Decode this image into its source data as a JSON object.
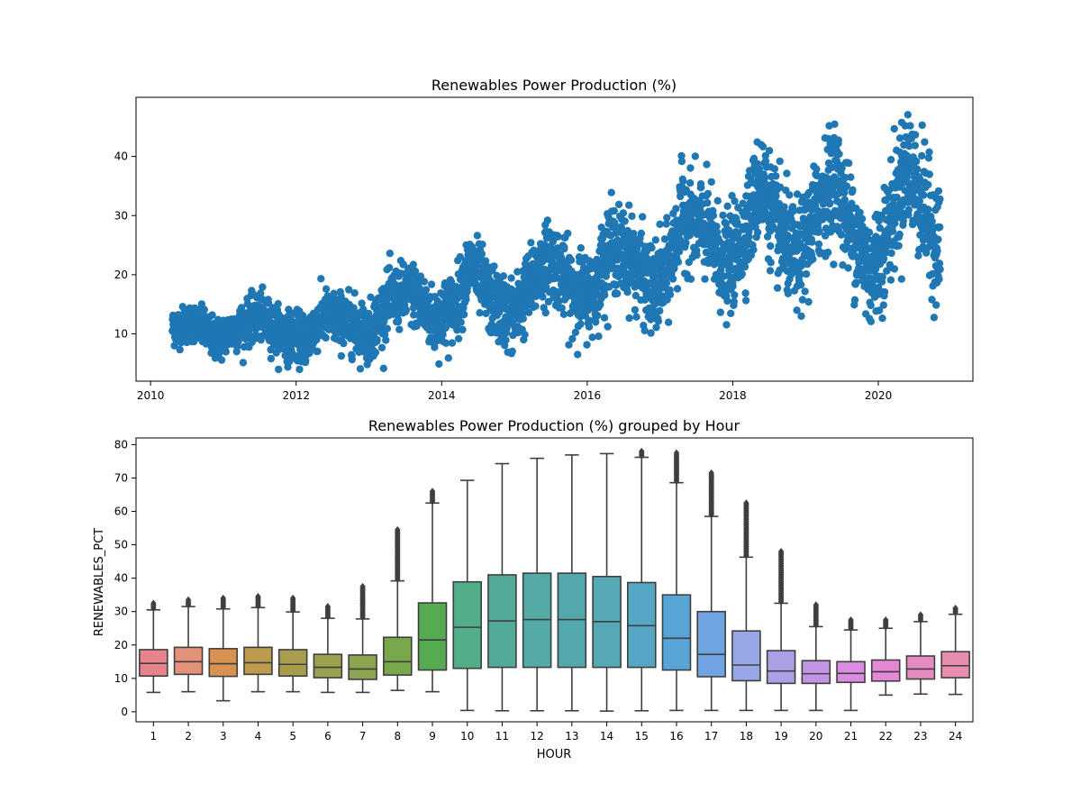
{
  "chart_data": [
    {
      "type": "scatter",
      "title": "Renewables Power Production (%)",
      "xlabel": "",
      "ylabel": "",
      "xlim": [
        2009.8,
        2021.3
      ],
      "ylim": [
        2,
        50
      ],
      "x_ticks": [
        2010,
        2012,
        2014,
        2016,
        2018,
        2020
      ],
      "y_ticks": [
        10,
        20,
        30,
        40
      ],
      "grid": false,
      "color": "#1f77b4",
      "series_description_points": [
        [
          2010.3,
          11
        ],
        [
          2010.6,
          12
        ],
        [
          2010.9,
          9
        ],
        [
          2011.2,
          11
        ],
        [
          2011.5,
          13
        ],
        [
          2011.8,
          10
        ],
        [
          2012.1,
          9
        ],
        [
          2012.4,
          13
        ],
        [
          2012.7,
          12
        ],
        [
          2013.0,
          10
        ],
        [
          2013.3,
          16
        ],
        [
          2013.6,
          17
        ],
        [
          2013.9,
          12
        ],
        [
          2014.2,
          15
        ],
        [
          2014.4,
          22
        ],
        [
          2014.7,
          15
        ],
        [
          2015.0,
          13
        ],
        [
          2015.3,
          20
        ],
        [
          2015.5,
          23
        ],
        [
          2015.8,
          17
        ],
        [
          2016.1,
          17
        ],
        [
          2016.3,
          25
        ],
        [
          2016.6,
          23
        ],
        [
          2016.9,
          17
        ],
        [
          2017.1,
          20
        ],
        [
          2017.3,
          30
        ],
        [
          2017.6,
          28
        ],
        [
          2017.9,
          21
        ],
        [
          2018.1,
          25
        ],
        [
          2018.4,
          36
        ],
        [
          2018.6,
          28
        ],
        [
          2018.9,
          22
        ],
        [
          2019.2,
          32
        ],
        [
          2019.4,
          37
        ],
        [
          2019.6,
          29
        ],
        [
          2019.9,
          20
        ],
        [
          2020.1,
          26
        ],
        [
          2020.4,
          39
        ],
        [
          2020.6,
          32
        ],
        [
          2020.8,
          25
        ]
      ]
    },
    {
      "type": "box",
      "title": "Renewables Power Production (%) grouped by Hour",
      "xlabel": "HOUR",
      "ylabel": "RENEWABLES_PCT",
      "ylim": [
        -3,
        82
      ],
      "y_ticks": [
        0,
        10,
        20,
        30,
        40,
        50,
        60,
        70,
        80
      ],
      "grid": false,
      "categories": [
        "1",
        "2",
        "3",
        "4",
        "5",
        "6",
        "7",
        "8",
        "9",
        "10",
        "11",
        "12",
        "13",
        "14",
        "15",
        "16",
        "17",
        "18",
        "19",
        "20",
        "21",
        "22",
        "23",
        "24"
      ],
      "boxes": [
        {
          "whislo": 5.8,
          "q1": 10.7,
          "med": 14.5,
          "q3": 18.6,
          "whishi": 30.5,
          "fliermax": 32.5,
          "color": "#e7848b"
        },
        {
          "whislo": 6.0,
          "q1": 11.2,
          "med": 15.0,
          "q3": 19.3,
          "whishi": 31.5,
          "fliermax": 33.5,
          "color": "#e4917a"
        },
        {
          "whislo": 3.3,
          "q1": 10.6,
          "med": 14.4,
          "q3": 18.9,
          "whishi": 30.8,
          "fliermax": 34.0,
          "color": "#d99152"
        },
        {
          "whislo": 6.0,
          "q1": 11.2,
          "med": 14.7,
          "q3": 19.3,
          "whishi": 31.2,
          "fliermax": 34.5,
          "color": "#bc9a4e"
        },
        {
          "whislo": 6.0,
          "q1": 10.7,
          "med": 14.2,
          "q3": 18.6,
          "whishi": 29.9,
          "fliermax": 34.0,
          "color": "#a89d4f"
        },
        {
          "whislo": 5.8,
          "q1": 10.2,
          "med": 13.3,
          "q3": 17.2,
          "whishi": 28.0,
          "fliermax": 31.5,
          "color": "#9aa04d"
        },
        {
          "whislo": 5.8,
          "q1": 9.7,
          "med": 12.8,
          "q3": 17.0,
          "whishi": 27.8,
          "fliermax": 37.5,
          "color": "#8aa44f"
        },
        {
          "whislo": 6.4,
          "q1": 11.0,
          "med": 15.0,
          "q3": 22.3,
          "whishi": 39.2,
          "fliermax": 54.5,
          "color": "#78a84b"
        },
        {
          "whislo": 6.0,
          "q1": 12.5,
          "med": 21.5,
          "q3": 32.6,
          "whishi": 62.5,
          "fliermax": 66.0,
          "color": "#56ab50"
        },
        {
          "whislo": 0.4,
          "q1": 13.0,
          "med": 25.3,
          "q3": 38.9,
          "whishi": 69.3,
          "fliermax": null,
          "color": "#52ad89"
        },
        {
          "whislo": 0.3,
          "q1": 13.3,
          "med": 27.2,
          "q3": 41.0,
          "whishi": 74.3,
          "fliermax": null,
          "color": "#52aa9a"
        },
        {
          "whislo": 0.3,
          "q1": 13.3,
          "med": 27.6,
          "q3": 41.5,
          "whishi": 75.9,
          "fliermax": null,
          "color": "#54aaa5"
        },
        {
          "whislo": 0.3,
          "q1": 13.3,
          "med": 27.6,
          "q3": 41.5,
          "whishi": 76.9,
          "fliermax": null,
          "color": "#53a8ad"
        },
        {
          "whislo": 0.2,
          "q1": 13.3,
          "med": 27.0,
          "q3": 40.5,
          "whishi": 77.3,
          "fliermax": null,
          "color": "#56a8b6"
        },
        {
          "whislo": 0.3,
          "q1": 13.3,
          "med": 25.8,
          "q3": 38.7,
          "whishi": 76.2,
          "fliermax": 78.0,
          "color": "#55a6c5"
        },
        {
          "whislo": 0.4,
          "q1": 12.5,
          "med": 22.0,
          "q3": 35.0,
          "whishi": 68.6,
          "fliermax": 77.5,
          "color": "#57a4d6"
        },
        {
          "whislo": 0.4,
          "q1": 10.5,
          "med": 17.2,
          "q3": 30.0,
          "whishi": 58.5,
          "fliermax": 71.5,
          "color": "#6fa4e2"
        },
        {
          "whislo": 0.4,
          "q1": 9.3,
          "med": 14.0,
          "q3": 24.2,
          "whishi": 46.3,
          "fliermax": 62.5,
          "color": "#97a6e6"
        },
        {
          "whislo": 0.4,
          "q1": 8.5,
          "med": 12.2,
          "q3": 18.3,
          "whishi": 32.5,
          "fliermax": 48.0,
          "color": "#ac9fe6"
        },
        {
          "whislo": 0.4,
          "q1": 8.5,
          "med": 11.4,
          "q3": 15.3,
          "whishi": 25.5,
          "fliermax": 32.0,
          "color": "#c195e3"
        },
        {
          "whislo": 0.4,
          "q1": 8.8,
          "med": 11.5,
          "q3": 15.0,
          "whishi": 24.5,
          "fliermax": 27.5,
          "color": "#d98ce2"
        },
        {
          "whislo": 5.0,
          "q1": 9.2,
          "med": 12.0,
          "q3": 15.5,
          "whishi": 25.0,
          "fliermax": 27.5,
          "color": "#e487d4"
        },
        {
          "whislo": 5.3,
          "q1": 9.8,
          "med": 12.8,
          "q3": 16.7,
          "whishi": 27.0,
          "fliermax": 29.0,
          "color": "#e68bc1"
        },
        {
          "whislo": 5.2,
          "q1": 10.2,
          "med": 13.8,
          "q3": 18.0,
          "whishi": 29.2,
          "fliermax": 31.0,
          "color": "#e88cb0"
        }
      ]
    }
  ]
}
